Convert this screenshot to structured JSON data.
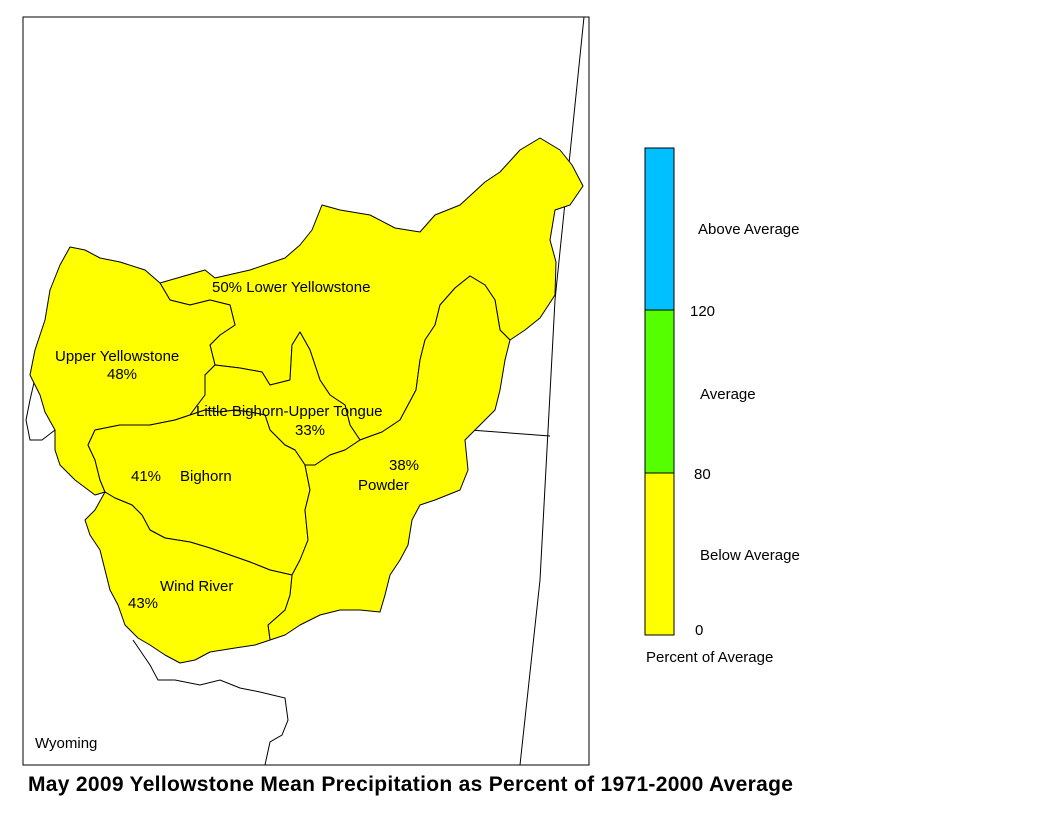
{
  "title": "May 2009 Yellowstone Mean Precipitation as Percent of 1971-2000 Average",
  "state_label": "Wyoming",
  "colors": {
    "below": "#ffff00",
    "average": "#55ff00",
    "above": "#00c0ff",
    "outline": "#000000"
  },
  "basins": [
    {
      "name": "Lower Yellowstone",
      "percent": "50%",
      "category": "below"
    },
    {
      "name": "Upper Yellowstone",
      "percent": "48%",
      "category": "below"
    },
    {
      "name": "Little Bighorn-Upper Tongue",
      "percent": "33%",
      "category": "below"
    },
    {
      "name": "Bighorn",
      "percent": "41%",
      "category": "below"
    },
    {
      "name": "Powder",
      "percent": "38%",
      "category": "below"
    },
    {
      "name": "Wind River",
      "percent": "43%",
      "category": "below"
    }
  ],
  "legend": {
    "title": "Percent of Average",
    "ticks": [
      "0",
      "80",
      "120"
    ],
    "categories": [
      {
        "label": "Above Average",
        "key": "above"
      },
      {
        "label": "Average",
        "key": "average"
      },
      {
        "label": "Below Average",
        "key": "below"
      }
    ]
  }
}
